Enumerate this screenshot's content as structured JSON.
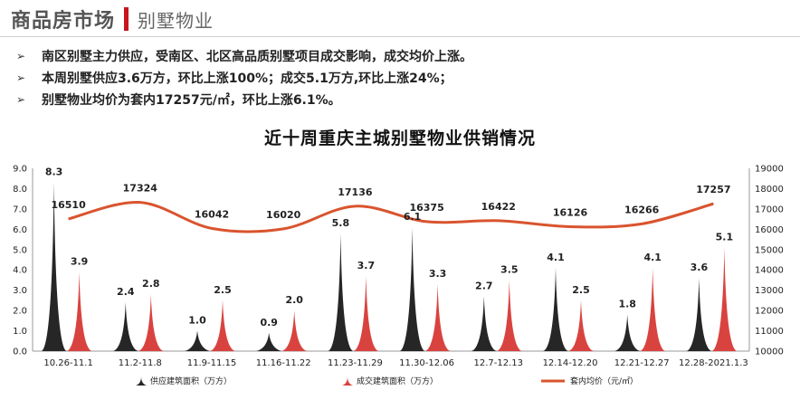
{
  "header": {
    "title": "商品房市场",
    "subtitle": "别墅物业"
  },
  "bullets": [
    "南区别墅主力供应，受南区、北区高品质别墅项目成交影响，成交均价上涨。",
    "本周别墅供应3.6万方，环比上涨100%；成交5.1万方,环比上涨24%；",
    "别墅物业均价为套内17257元/㎡，环比上涨6.1%。"
  ],
  "chart_data": {
    "type": "bar",
    "title": "近十周重庆主城别墅物业供销情况",
    "categories": [
      "10.26-11.1",
      "11.2-11.8",
      "11.9-11.15",
      "11.16-11.22",
      "11.23-11.29",
      "11.30-12.06",
      "12.7-12.13",
      "12.14-12.20",
      "12.21-12.27",
      "12.28-2021.1.3"
    ],
    "series": [
      {
        "name": "供应建筑面积（万方）",
        "kind": "spike",
        "color": "#262626",
        "values": [
          8.3,
          2.4,
          1.0,
          0.9,
          5.8,
          6.1,
          2.7,
          4.1,
          1.8,
          3.6
        ],
        "labels": [
          "8.3",
          "2.4",
          "1.0",
          "0.9",
          "5.8",
          "6.1",
          "2.7",
          "4.1",
          "1.8",
          "3.6"
        ]
      },
      {
        "name": "成交建筑面积（万方）",
        "kind": "spike",
        "color": "#d9433f",
        "values": [
          3.9,
          2.8,
          2.5,
          2.0,
          3.7,
          3.3,
          3.5,
          2.5,
          4.1,
          5.1
        ],
        "labels": [
          "3.9",
          "2.8",
          "2.5",
          "2.0",
          "3.7",
          "3.3",
          "3.5",
          "2.5",
          "4.1",
          "5.1"
        ]
      },
      {
        "name": "套内均价（元/㎡）",
        "kind": "line",
        "color": "#d9542e",
        "axis": "right",
        "values": [
          16510,
          17324,
          16042,
          16020,
          17136,
          16375,
          16422,
          16126,
          16266,
          17257
        ],
        "labels": [
          "16510",
          "17324",
          "16042",
          "16020",
          "17136",
          "16375",
          "16422",
          "16126",
          "16266",
          "17257"
        ]
      }
    ],
    "y_left": {
      "min": 0,
      "max": 9,
      "ticks": [
        "0.0",
        "1.0",
        "2.0",
        "3.0",
        "4.0",
        "5.0",
        "6.0",
        "7.0",
        "8.0",
        "9.0"
      ]
    },
    "y_right": {
      "min": 10000,
      "max": 19000,
      "ticks": [
        "10000",
        "11000",
        "12000",
        "13000",
        "14000",
        "15000",
        "16000",
        "17000",
        "18000",
        "19000"
      ]
    },
    "grid": false,
    "legend_position": "bottom"
  }
}
